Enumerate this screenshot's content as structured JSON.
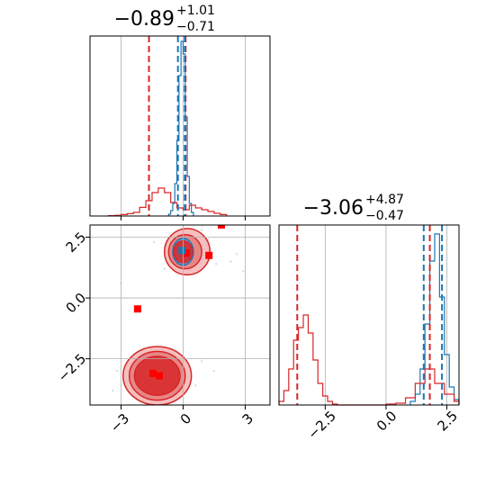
{
  "chart_data": {
    "type": "corner",
    "grid": true,
    "colors": {
      "blue": "#1f77b4",
      "red": "#d62728",
      "grid": "#b0b0b0",
      "blue_fill": "#6a9fd0",
      "red_fill_light": "#f4b4b4",
      "red_fill_mid": "#e57b7b",
      "red_fill_dark": "#d62728",
      "marker": "#ff0000"
    },
    "panels": [
      {
        "id": "hist-param-1",
        "type": "histogram",
        "title": {
          "value": "−0.89",
          "upper": "+1.01",
          "lower": "−0.71"
        },
        "xlim": [
          -4.5,
          4.2
        ],
        "ylim": [
          0,
          1
        ],
        "xticks": [
          -3,
          0,
          3
        ],
        "tick_labels_shown": false,
        "series": [
          {
            "name": "",
            "color": "blue",
            "bins": [
              -0.7,
              -0.6,
              -0.5,
              -0.4,
              -0.3,
              -0.2,
              -0.1,
              0.0,
              0.1,
              0.2,
              0.3,
              0.4,
              0.5
            ],
            "values": [
              0.01,
              0.03,
              0.07,
              0.18,
              0.42,
              0.78,
              0.97,
              0.9,
              0.55,
              0.22,
              0.07,
              0.02
            ]
          },
          {
            "name": "",
            "color": "red",
            "bins": [
              -3.6,
              -3.3,
              -3.0,
              -2.7,
              -2.4,
              -2.1,
              -1.8,
              -1.5,
              -1.2,
              -0.9,
              -0.6,
              -0.3,
              0.0,
              0.3,
              0.6,
              0.9,
              1.2,
              1.5,
              1.8,
              2.1
            ],
            "values": [
              0.002,
              0.004,
              0.008,
              0.013,
              0.02,
              0.048,
              0.085,
              0.13,
              0.155,
              0.13,
              0.075,
              0.045,
              0.035,
              0.06,
              0.045,
              0.035,
              0.025,
              0.015,
              0.008
            ]
          }
        ],
        "quantiles": [
          {
            "color": "red",
            "x": -1.65
          },
          {
            "color": "red",
            "x": 0.12
          },
          {
            "color": "blue",
            "x": -0.25
          },
          {
            "color": "blue",
            "x": 0.08
          }
        ]
      },
      {
        "id": "hist-param-2",
        "type": "histogram",
        "title": {
          "value": "−3.06",
          "upper": "+4.87",
          "lower": "−0.47"
        },
        "xlim": [
          -4.4,
          3.0
        ],
        "ylim": [
          0,
          1
        ],
        "xticks": [
          -2.5,
          0.0,
          2.5
        ],
        "xtick_labels": [
          "−2.5",
          "0.0",
          "2.5"
        ],
        "series": [
          {
            "name": "",
            "color": "blue",
            "bins": [
              1.0,
              1.2,
              1.4,
              1.6,
              1.8,
              2.0,
              2.2,
              2.4,
              2.6,
              2.8,
              3.0
            ],
            "values": [
              0.02,
              0.06,
              0.2,
              0.45,
              0.8,
              0.95,
              0.6,
              0.28,
              0.1,
              0.03
            ]
          },
          {
            "name": "",
            "color": "red",
            "bins": [
              -4.4,
              -4.2,
              -4.0,
              -3.8,
              -3.6,
              -3.4,
              -3.2,
              -3.0,
              -2.8,
              -2.6,
              -2.4,
              -2.2,
              -2.0,
              0.0,
              0.4,
              0.8,
              1.2,
              1.6,
              2.0,
              2.4,
              2.8,
              3.0
            ],
            "values": [
              0.02,
              0.08,
              0.2,
              0.36,
              0.43,
              0.5,
              0.4,
              0.25,
              0.12,
              0.05,
              0.02,
              0.005,
              0,
              0.005,
              0.01,
              0.04,
              0.12,
              0.2,
              0.12,
              0.06,
              0.02
            ]
          }
        ],
        "quantiles": [
          {
            "color": "red",
            "x": -3.65
          },
          {
            "color": "red",
            "x": 1.8
          },
          {
            "color": "blue",
            "x": 1.55
          },
          {
            "color": "blue",
            "x": 2.3
          }
        ]
      },
      {
        "id": "scatter-param-1-vs-2",
        "type": "2d-density",
        "xlim": [
          -4.5,
          4.2
        ],
        "ylim": [
          -4.4,
          3.0
        ],
        "xticks": [
          -3,
          0,
          3
        ],
        "xtick_labels": [
          "−3",
          "0",
          "3"
        ],
        "yticks": [
          -2.5,
          0.0,
          2.5
        ],
        "ytick_labels": [
          "−2.5",
          "0.0",
          "2.5"
        ],
        "contours": [
          {
            "color": "red",
            "fill": "red_fill_light",
            "cx": -1.25,
            "cy": -3.2,
            "rx": 1.65,
            "ry": 1.2
          },
          {
            "color": "red",
            "fill": "red_fill_mid",
            "cx": -1.25,
            "cy": -3.2,
            "rx": 1.35,
            "ry": 1.0
          },
          {
            "color": "red",
            "fill": "red_fill_dark",
            "cx": -1.25,
            "cy": -3.2,
            "rx": 1.1,
            "ry": 0.8
          },
          {
            "color": "red",
            "fill": "red_fill_light",
            "cx": 0.2,
            "cy": 1.9,
            "rx": 1.1,
            "ry": 0.95
          },
          {
            "color": "red",
            "fill": "red_fill_mid",
            "cx": 0.1,
            "cy": 1.9,
            "rx": 0.8,
            "ry": 0.7
          },
          {
            "color": "blue",
            "fill": "blue_fill",
            "cx": 0.0,
            "cy": 1.9,
            "rx": 0.5,
            "ry": 0.55
          },
          {
            "color": "red",
            "fill": "red_fill_dark",
            "cx": 0.0,
            "cy": 1.9,
            "rx": 0.45,
            "ry": 0.45
          }
        ],
        "markers": [
          {
            "color": "marker",
            "x": -2.2,
            "y": -0.45
          },
          {
            "color": "marker",
            "x": 1.25,
            "y": 1.75
          },
          {
            "color": "marker",
            "x": 1.85,
            "y": 3.0
          },
          {
            "color": "marker",
            "x": 0.15,
            "y": 1.85
          },
          {
            "color": "marker",
            "x": -1.45,
            "y": -3.1
          },
          {
            "color": "marker",
            "x": -1.15,
            "y": -3.2
          },
          {
            "color": "blue",
            "x": -0.05,
            "y": 1.95
          }
        ]
      }
    ]
  }
}
